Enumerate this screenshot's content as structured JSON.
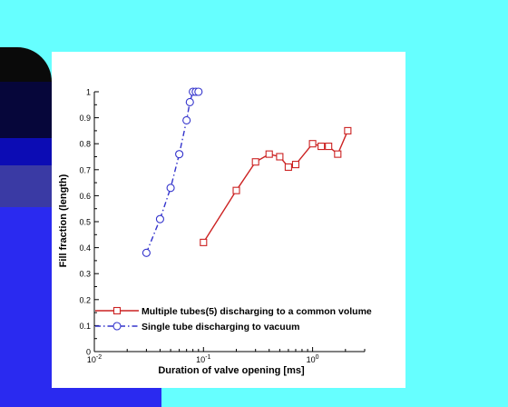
{
  "background": {
    "base_color": "#66ffff",
    "bands": [
      {
        "name": "background-dark-arc",
        "color": "#0a0a0a"
      },
      {
        "name": "background-navy-band",
        "color": "#06063a"
      },
      {
        "name": "background-blue-band",
        "color": "#0c0cb4"
      },
      {
        "name": "background-slate-band",
        "color": "#3a3aa4"
      },
      {
        "name": "background-bright-blue-band",
        "color": "#2a2af0"
      }
    ]
  },
  "chart_data": {
    "type": "line",
    "xlabel": "Duration of valve opening [ms]",
    "ylabel": "Fill fraction (length)",
    "x_scale": "log",
    "xlim": [
      0.01,
      3
    ],
    "ylim": [
      0,
      1
    ],
    "x_ticks": [
      {
        "value": 0.01,
        "base": "10",
        "exp": "-2"
      },
      {
        "value": 0.1,
        "base": "10",
        "exp": "-1"
      },
      {
        "value": 1,
        "base": "10",
        "exp": "0"
      }
    ],
    "y_ticks": [
      "0",
      "0.1",
      "0.2",
      "0.3",
      "0.4",
      "0.5",
      "0.6",
      "0.7",
      "0.8",
      "0.9",
      "1"
    ],
    "grid": false,
    "legend_position": "bottom-left",
    "series": [
      {
        "name": "Multiple tubes(5) discharging to a common volume",
        "color": "#cc2222",
        "marker": "square",
        "line_style": "solid",
        "x": [
          0.1,
          0.2,
          0.3,
          0.4,
          0.5,
          0.6,
          0.7,
          1.0,
          1.2,
          1.4,
          1.7,
          2.1
        ],
        "y": [
          0.42,
          0.62,
          0.73,
          0.76,
          0.75,
          0.71,
          0.72,
          0.8,
          0.79,
          0.79,
          0.76,
          0.85
        ]
      },
      {
        "name": "Single tube discharging to vacuum",
        "color": "#3333cc",
        "marker": "circle",
        "line_style": "dashdot",
        "x": [
          0.03,
          0.04,
          0.05,
          0.06,
          0.07,
          0.075,
          0.08,
          0.085,
          0.09
        ],
        "y": [
          0.38,
          0.51,
          0.63,
          0.76,
          0.89,
          0.96,
          1.0,
          1.0,
          1.0
        ]
      }
    ]
  }
}
